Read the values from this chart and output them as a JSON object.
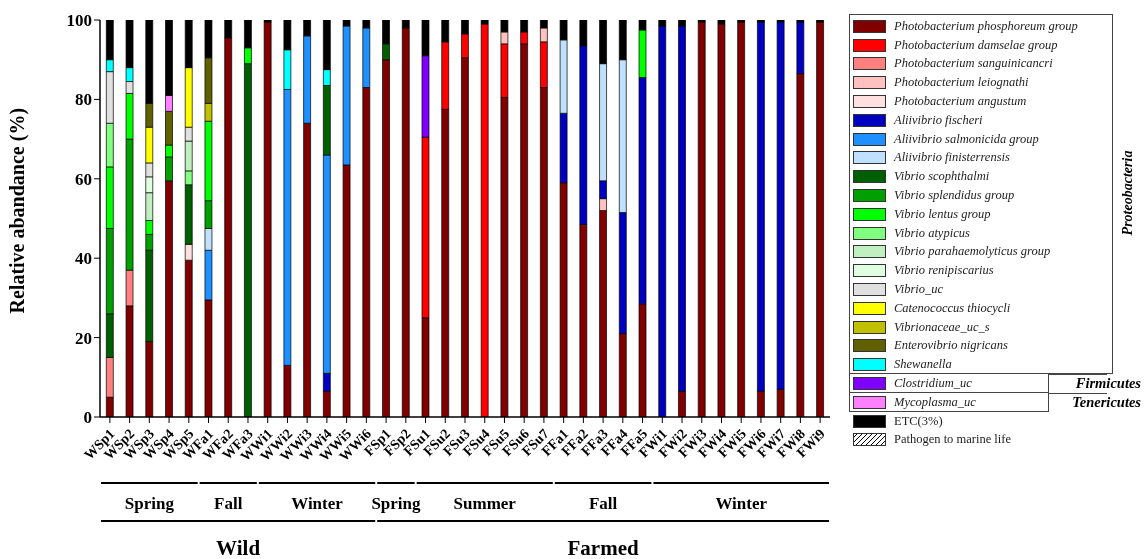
{
  "chart_data": {
    "type": "bar",
    "stacked": true,
    "ylabel": "Relative abandance (%)",
    "ylim": [
      0,
      100
    ],
    "yticks": [
      0,
      20,
      40,
      60,
      80,
      100
    ],
    "grid": false,
    "legend": "right",
    "categories": [
      "WSp1",
      "WSp2",
      "WSp3",
      "WSp4",
      "WSp5",
      "WFa1",
      "WFa2",
      "WFa3",
      "WWi1",
      "WWi2",
      "WWi3",
      "WWi4",
      "WWi5",
      "WWi6",
      "FSp1",
      "FSp2",
      "FSu1",
      "FSu2",
      "FSu3",
      "FSu4",
      "FSu5",
      "FSu6",
      "FSu7",
      "FFa1",
      "FFa2",
      "FFa3",
      "FFa4",
      "FFa5",
      "FWi1",
      "FWi2",
      "FWi3",
      "FWi4",
      "FWi5",
      "FWi6",
      "FWi7",
      "FWi8",
      "FWi9"
    ],
    "series": [
      {
        "name": "Photobacterium phosphoreum group",
        "color": "#800000",
        "values": [
          5,
          28,
          19,
          59.5,
          39.5,
          29.5,
          95.5,
          null,
          99.5,
          13,
          74,
          6.5,
          63.5,
          83,
          90,
          98,
          25,
          77.5,
          90.5,
          null,
          80.5,
          94,
          83,
          59,
          48.5,
          52,
          21,
          28.5,
          null,
          6.5,
          99.5,
          99,
          99.5,
          6.5,
          7,
          86.5,
          99.5
        ]
      },
      {
        "name": "Photobacterium damselae group",
        "color": "#ff0000",
        "values": [
          null,
          null,
          null,
          null,
          null,
          null,
          null,
          null,
          null,
          null,
          null,
          null,
          null,
          null,
          null,
          null,
          45.5,
          17,
          6,
          99,
          13.5,
          3,
          11.5,
          null,
          null,
          null,
          null,
          null,
          null,
          null,
          null,
          null,
          null,
          null,
          null,
          null,
          null
        ]
      },
      {
        "name": "Photobacterium sanguinicancri",
        "color": "#ff8080",
        "values": [
          10,
          9,
          null,
          null,
          null,
          null,
          null,
          null,
          null,
          null,
          null,
          null,
          null,
          null,
          null,
          null,
          null,
          null,
          null,
          null,
          null,
          null,
          null,
          null,
          null,
          null,
          null,
          null,
          null,
          null,
          null,
          null,
          null,
          null,
          null,
          null,
          null
        ]
      },
      {
        "name": "Photobacterium leiognathi",
        "color": "#ffc0c0",
        "values": [
          null,
          null,
          null,
          null,
          null,
          null,
          null,
          null,
          null,
          null,
          null,
          null,
          null,
          null,
          null,
          null,
          null,
          null,
          null,
          null,
          3,
          null,
          3.5,
          null,
          null,
          3,
          null,
          null,
          null,
          null,
          null,
          null,
          null,
          null,
          null,
          null,
          null
        ]
      },
      {
        "name": "Photobacterium angustum",
        "color": "#ffe0e0",
        "values": [
          null,
          null,
          null,
          null,
          4,
          null,
          null,
          null,
          null,
          null,
          null,
          null,
          null,
          null,
          null,
          null,
          null,
          null,
          null,
          null,
          null,
          null,
          null,
          null,
          null,
          null,
          null,
          null,
          null,
          null,
          null,
          null,
          null,
          null,
          null,
          null,
          null
        ]
      },
      {
        "name": "Aliivibrio fischeri",
        "color": "#0000c0",
        "values": [
          null,
          null,
          null,
          null,
          null,
          null,
          null,
          null,
          null,
          null,
          null,
          4.5,
          null,
          null,
          null,
          null,
          null,
          null,
          null,
          null,
          null,
          null,
          null,
          17.5,
          45,
          4.5,
          30.5,
          57,
          98.5,
          92,
          null,
          null,
          null,
          93,
          92.5,
          13,
          null
        ]
      },
      {
        "name": "Aliivibrio salmonicida group",
        "color": "#1e90ff",
        "values": [
          null,
          null,
          null,
          null,
          null,
          12.5,
          null,
          null,
          null,
          69.5,
          22,
          55,
          35,
          15,
          null,
          null,
          null,
          null,
          null,
          null,
          null,
          null,
          null,
          null,
          null,
          null,
          null,
          null,
          null,
          null,
          null,
          null,
          null,
          null,
          null,
          null,
          null
        ]
      },
      {
        "name": "Aliivibrio finisterrensis",
        "color": "#c0e0ff",
        "values": [
          null,
          null,
          null,
          null,
          null,
          5.5,
          null,
          null,
          null,
          null,
          null,
          null,
          null,
          null,
          null,
          null,
          null,
          null,
          null,
          null,
          null,
          null,
          null,
          18.5,
          null,
          29.5,
          38.5,
          null,
          null,
          null,
          null,
          null,
          null,
          null,
          null,
          null,
          null
        ]
      },
      {
        "name": "Vibrio scophthalmi",
        "color": "#006000",
        "values": [
          11,
          null,
          23,
          null,
          15,
          null,
          null,
          89,
          null,
          null,
          null,
          17.5,
          null,
          null,
          4,
          null,
          null,
          null,
          null,
          null,
          null,
          null,
          null,
          null,
          null,
          null,
          null,
          null,
          null,
          null,
          null,
          null,
          null,
          null,
          null,
          null,
          null
        ]
      },
      {
        "name": "Vibrio splendidus group",
        "color": "#00a000",
        "values": [
          21.5,
          33,
          4,
          6,
          null,
          7,
          null,
          null,
          null,
          null,
          null,
          null,
          null,
          null,
          null,
          null,
          null,
          null,
          null,
          null,
          null,
          null,
          null,
          null,
          null,
          null,
          null,
          null,
          null,
          null,
          null,
          null,
          null,
          null,
          null,
          null,
          null
        ]
      },
      {
        "name": "Vibrio lentus group",
        "color": "#00ff00",
        "values": [
          15.5,
          11.5,
          3.5,
          3,
          null,
          20,
          null,
          4,
          null,
          null,
          null,
          null,
          null,
          null,
          null,
          null,
          null,
          null,
          null,
          null,
          null,
          null,
          null,
          null,
          null,
          null,
          null,
          12,
          null,
          null,
          null,
          null,
          null,
          null,
          null,
          null,
          null
        ]
      },
      {
        "name": "Vibrio atypicus",
        "color": "#80ff80",
        "values": [
          11,
          null,
          null,
          null,
          3.5,
          null,
          null,
          null,
          null,
          null,
          null,
          null,
          null,
          null,
          null,
          null,
          null,
          null,
          null,
          null,
          null,
          null,
          null,
          null,
          null,
          null,
          null,
          null,
          null,
          null,
          null,
          null,
          null,
          null,
          null,
          null,
          null
        ]
      },
      {
        "name": "Vibrio parahaemolyticus group",
        "color": "#c0f0c0",
        "values": [
          null,
          null,
          7,
          null,
          7.5,
          null,
          null,
          null,
          null,
          null,
          null,
          null,
          null,
          null,
          null,
          null,
          null,
          null,
          null,
          null,
          null,
          null,
          null,
          null,
          null,
          null,
          null,
          null,
          null,
          null,
          null,
          null,
          null,
          null,
          null,
          null,
          null
        ]
      },
      {
        "name": "Vibrio renipiscarius",
        "color": "#e0ffe0",
        "values": [
          null,
          null,
          4,
          null,
          null,
          null,
          null,
          null,
          null,
          null,
          null,
          null,
          null,
          null,
          null,
          null,
          null,
          null,
          null,
          null,
          null,
          null,
          null,
          null,
          null,
          null,
          null,
          null,
          null,
          null,
          null,
          null,
          null,
          null,
          null,
          null,
          null
        ]
      },
      {
        "name": "Vibrio_uc",
        "color": "#e0e0e0",
        "values": [
          13,
          3,
          3.5,
          null,
          3.5,
          null,
          null,
          null,
          null,
          null,
          null,
          null,
          null,
          null,
          null,
          null,
          null,
          null,
          null,
          null,
          null,
          null,
          null,
          null,
          null,
          null,
          null,
          null,
          null,
          null,
          null,
          null,
          null,
          null,
          null,
          null,
          null
        ]
      },
      {
        "name": "Catenococcus thiocycli",
        "color": "#ffff00",
        "values": [
          null,
          null,
          9,
          null,
          15,
          null,
          null,
          null,
          null,
          null,
          null,
          null,
          null,
          null,
          null,
          null,
          null,
          null,
          null,
          null,
          null,
          null,
          null,
          null,
          null,
          null,
          null,
          null,
          null,
          null,
          null,
          null,
          null,
          null,
          null,
          null,
          null
        ]
      },
      {
        "name": "Vibrionaceae_uc_s",
        "color": "#c0c000",
        "values": [
          null,
          null,
          null,
          null,
          null,
          4.5,
          null,
          null,
          null,
          null,
          null,
          null,
          null,
          null,
          null,
          null,
          null,
          null,
          null,
          null,
          null,
          null,
          null,
          null,
          null,
          null,
          null,
          null,
          null,
          null,
          null,
          null,
          null,
          null,
          null,
          null,
          null
        ]
      },
      {
        "name": "Enterovibrio nigricans",
        "color": "#606000",
        "values": [
          null,
          null,
          6,
          8.5,
          null,
          11.5,
          null,
          null,
          null,
          null,
          null,
          null,
          null,
          null,
          null,
          null,
          null,
          null,
          null,
          null,
          null,
          null,
          null,
          null,
          null,
          null,
          null,
          null,
          null,
          null,
          null,
          null,
          null,
          null,
          null,
          null,
          null
        ]
      },
      {
        "name": "Shewanella",
        "color": "#00ffff",
        "values": [
          3,
          3.5,
          null,
          null,
          null,
          null,
          null,
          null,
          null,
          10,
          null,
          4,
          null,
          null,
          null,
          null,
          null,
          null,
          null,
          null,
          null,
          null,
          null,
          null,
          null,
          null,
          null,
          null,
          null,
          null,
          null,
          null,
          null,
          null,
          null,
          null,
          null
        ]
      },
      {
        "name": "Clostridium_uc",
        "color": "#8000ff",
        "values": [
          null,
          null,
          null,
          null,
          null,
          null,
          null,
          null,
          null,
          null,
          null,
          null,
          null,
          null,
          null,
          null,
          20.5,
          null,
          null,
          null,
          null,
          null,
          null,
          null,
          null,
          null,
          null,
          null,
          null,
          null,
          null,
          null,
          null,
          null,
          null,
          null,
          null
        ]
      },
      {
        "name": "Mycoplasma_uc",
        "color": "#ff80ff",
        "values": [
          null,
          null,
          null,
          4,
          null,
          null,
          null,
          null,
          null,
          null,
          null,
          null,
          null,
          null,
          null,
          null,
          null,
          null,
          null,
          null,
          null,
          null,
          null,
          null,
          null,
          null,
          null,
          null,
          null,
          null,
          null,
          null,
          null,
          null,
          null,
          null,
          null
        ]
      },
      {
        "name": "ETC(3%)",
        "color": "#000000",
        "values": [
          10,
          12,
          21,
          19,
          12,
          9.5,
          4.5,
          7,
          0.5,
          7.5,
          4,
          12.5,
          1.5,
          2,
          6,
          2,
          9,
          5.5,
          3.5,
          1,
          3,
          3,
          2,
          5,
          6.5,
          11,
          10,
          2.5,
          1.5,
          1.5,
          0.5,
          1,
          0.5,
          0.5,
          0.5,
          0.5,
          0.5
        ]
      }
    ],
    "annotations": [
      "Spring",
      "Fall",
      "Winter",
      "Spring",
      "Summer",
      "Fall",
      "Winter",
      "Wild",
      "Farmed",
      "Proteobacteria",
      "Firmicutes",
      "Tenericutes",
      "Pathogen to marine life"
    ]
  }
}
